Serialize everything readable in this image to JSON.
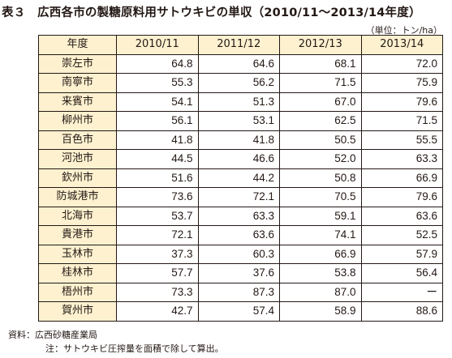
{
  "title": "表３　広西各市の製糖原料用サトウキビの単収（2010/11〜2013/14年度）",
  "unit": "（単位：トン/ha）",
  "table": {
    "header": [
      "年度",
      "2010/11",
      "2011/12",
      "2012/13",
      "2013/14"
    ],
    "rows": [
      {
        "city": "崇左市",
        "values": [
          "64.8",
          "64.6",
          "68.1",
          "72.0"
        ]
      },
      {
        "city": "南寧市",
        "values": [
          "55.3",
          "56.2",
          "71.5",
          "75.9"
        ]
      },
      {
        "city": "来賓市",
        "values": [
          "54.1",
          "51.3",
          "67.0",
          "79.6"
        ]
      },
      {
        "city": "柳州市",
        "values": [
          "56.1",
          "53.1",
          "62.5",
          "71.5"
        ]
      },
      {
        "city": "百色市",
        "values": [
          "41.8",
          "41.8",
          "50.5",
          "55.5"
        ]
      },
      {
        "city": "河池市",
        "values": [
          "44.5",
          "46.6",
          "52.0",
          "63.3"
        ]
      },
      {
        "city": "欽州市",
        "values": [
          "51.6",
          "44.2",
          "50.8",
          "66.9"
        ]
      },
      {
        "city": "防城港市",
        "values": [
          "73.6",
          "72.1",
          "70.5",
          "79.6"
        ]
      },
      {
        "city": "北海市",
        "values": [
          "53.7",
          "63.3",
          "59.1",
          "63.6"
        ]
      },
      {
        "city": "貴港市",
        "values": [
          "72.1",
          "63.6",
          "74.1",
          "52.5"
        ]
      },
      {
        "city": "玉林市",
        "values": [
          "37.3",
          "60.3",
          "66.9",
          "57.9"
        ]
      },
      {
        "city": "桂林市",
        "values": [
          "57.7",
          "37.6",
          "53.8",
          "56.4"
        ]
      },
      {
        "city": "梧州市",
        "values": [
          "73.3",
          "87.3",
          "87.0",
          "ー"
        ]
      },
      {
        "city": "賀州市",
        "values": [
          "42.7",
          "57.4",
          "58.9",
          "88.6"
        ]
      }
    ]
  },
  "notes": {
    "source": "資料：広西砂糖産業局",
    "note": "注：サトウキビ圧搾量を面積で除して算出。"
  }
}
